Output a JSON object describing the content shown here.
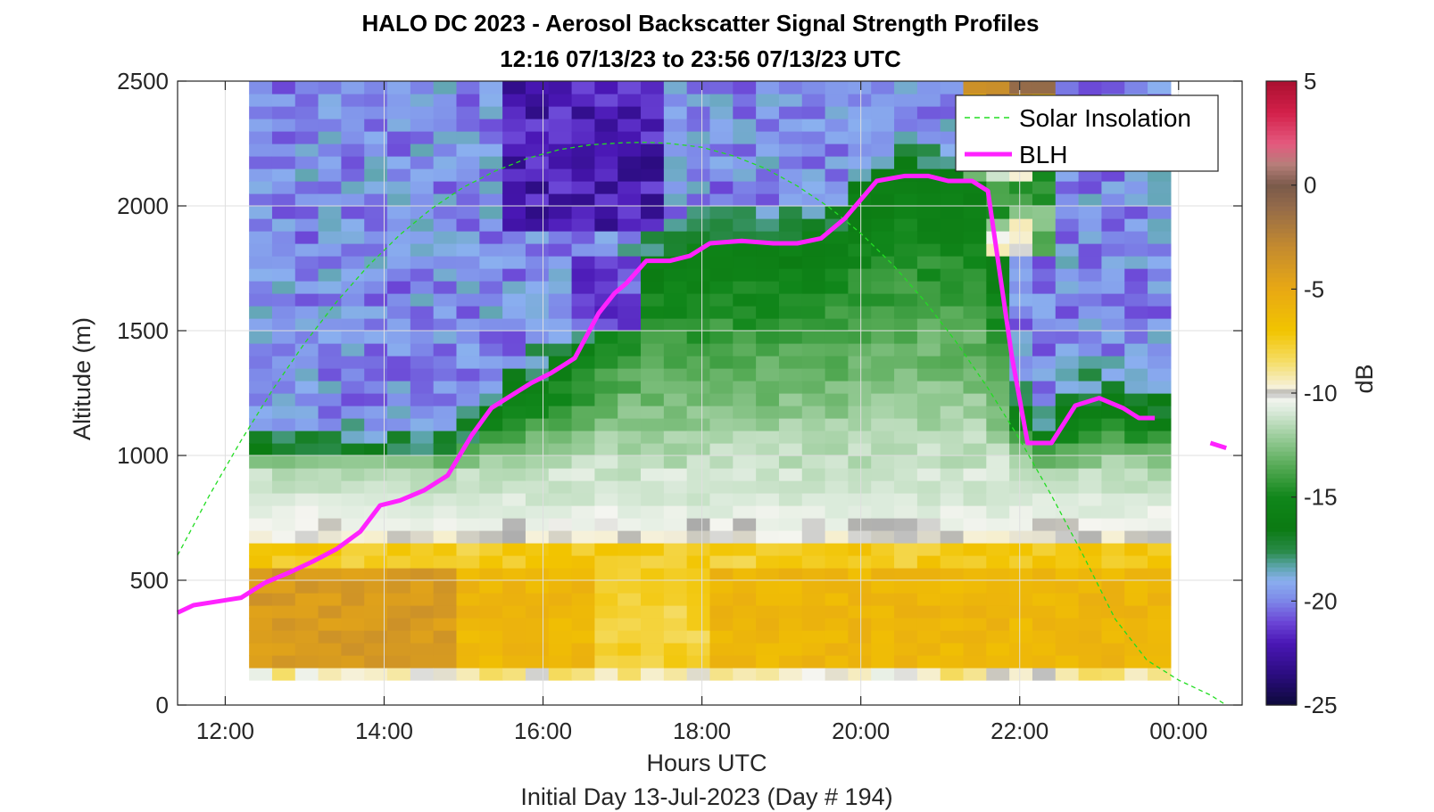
{
  "chart_data": {
    "type": "heatmap",
    "title": "HALO DC 2023 - Aerosol Backscatter Signal Strength Profiles",
    "subtitle": "12:16 07/13/23 to 23:56 07/13/23  UTC",
    "xlabel": "Hours UTC",
    "xlabel2": "Initial Day 13-Jul-2023 (Day # 194)",
    "ylabel": "Altitude (m)",
    "colorbar_label": "dB",
    "xlim": [
      11.4,
      24.8
    ],
    "ylim": [
      0,
      2500
    ],
    "x_ticks": [
      12,
      14,
      16,
      18,
      20,
      22,
      24
    ],
    "x_tick_labels": [
      "12:00",
      "14:00",
      "16:00",
      "18:00",
      "20:00",
      "22:00",
      "00:00"
    ],
    "y_ticks": [
      0,
      500,
      1000,
      1500,
      2000,
      2500
    ],
    "y_tick_labels": [
      "0",
      "500",
      "1000",
      "1500",
      "2000",
      "2500"
    ],
    "clim": [
      -25,
      5
    ],
    "colorbar_ticks": [
      5,
      0,
      -5,
      -10,
      -15,
      -20,
      -25
    ],
    "colorbar_tick_labels": [
      "5",
      "0",
      "-5",
      "-10",
      "-15",
      "-20",
      "-25"
    ],
    "grid": true,
    "legend_position": "top-right",
    "heatmap": {
      "x_start": 12.3,
      "x_end": 23.9,
      "columns": 40,
      "altitude_bins_m": [
        100,
        150,
        200,
        250,
        300,
        350,
        400,
        450,
        500,
        550,
        600,
        650,
        700,
        750,
        800,
        850,
        900,
        950,
        1000,
        1050,
        1100,
        1150,
        1200,
        1250,
        1300,
        1350,
        1400,
        1450,
        1500,
        1550,
        1600,
        1650,
        1700,
        1750,
        1800,
        1850,
        1900,
        1950,
        2000,
        2050,
        2100,
        2150,
        2200,
        2250,
        2300,
        2350,
        2400,
        2450
      ],
      "value_units": "dB",
      "note_colors": {
        "low": "#0d0a3a",
        "high": "#b01030"
      }
    },
    "series": [
      {
        "name": "Solar Insolation",
        "style": "dashed",
        "color": "#22dd22",
        "x": [
          11.4,
          11.8,
          12.2,
          12.6,
          13.0,
          13.4,
          13.8,
          14.2,
          14.6,
          15.0,
          15.4,
          15.8,
          16.2,
          16.6,
          17.0,
          17.3,
          17.6,
          18.0,
          18.4,
          18.8,
          19.2,
          19.6,
          20.0,
          20.4,
          20.8,
          21.2,
          21.6,
          22.0,
          22.4,
          22.8,
          23.2,
          23.6,
          24.0,
          24.4,
          24.6
        ],
        "y": [
          600,
          840,
          1060,
          1265,
          1450,
          1615,
          1760,
          1885,
          1990,
          2075,
          2140,
          2190,
          2225,
          2245,
          2253,
          2255,
          2250,
          2235,
          2200,
          2150,
          2080,
          1995,
          1890,
          1765,
          1620,
          1455,
          1270,
          1065,
          840,
          600,
          345,
          180,
          100,
          40,
          0
        ]
      },
      {
        "name": "BLH",
        "style": "solid",
        "color": "#ff22ff",
        "x": [
          11.4,
          11.6,
          11.9,
          12.2,
          12.5,
          12.8,
          13.1,
          13.4,
          13.7,
          13.95,
          14.2,
          14.5,
          14.8,
          15.1,
          15.35,
          15.6,
          15.85,
          16.1,
          16.4,
          16.7,
          16.9,
          17.05,
          17.3,
          17.6,
          17.85,
          18.1,
          18.5,
          18.9,
          19.2,
          19.5,
          19.8,
          20.2,
          20.55,
          20.85,
          21.1,
          21.4,
          21.6,
          21.9,
          22.1,
          22.4,
          22.7,
          23.0,
          23.3,
          23.5,
          23.7
        ],
        "y": [
          370,
          400,
          415,
          430,
          490,
          530,
          575,
          625,
          695,
          800,
          820,
          860,
          920,
          1080,
          1190,
          1240,
          1290,
          1330,
          1390,
          1570,
          1650,
          1690,
          1780,
          1780,
          1800,
          1850,
          1860,
          1850,
          1850,
          1870,
          1950,
          2100,
          2120,
          2120,
          2100,
          2100,
          2060,
          1400,
          1050,
          1050,
          1200,
          1230,
          1190,
          1150,
          1150
        ]
      },
      {
        "name": "",
        "style": "solid",
        "color": "#ff22ff",
        "x": [
          24.4,
          24.6
        ],
        "y": [
          1050,
          1030
        ]
      }
    ]
  }
}
